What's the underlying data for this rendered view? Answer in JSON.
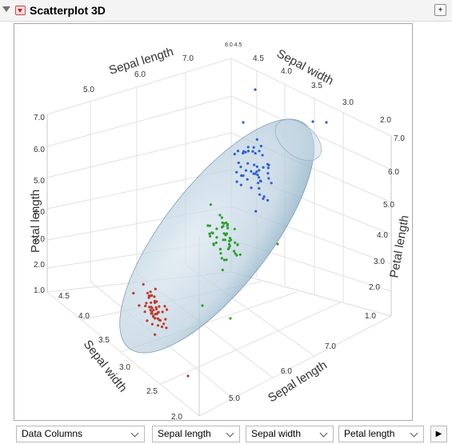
{
  "window": {
    "title": "Scatterplot 3D"
  },
  "controls": {
    "data_columns": "Data Columns",
    "x_column": "Sepal length",
    "y_column": "Sepal width",
    "z_column": "Petal length",
    "next_icon": "play-triangle-icon"
  },
  "axes": {
    "sepal_length_label": "Sepal length",
    "sepal_width_label": "Sepal width",
    "petal_length_label": "Petal length",
    "sepal_length_ticks": [
      "5.0",
      "6.0",
      "7.0"
    ],
    "sepal_width_ticks": [
      "2.0",
      "2.5",
      "3.0",
      "3.5",
      "4.0",
      "4.5"
    ],
    "petal_length_ticks": [
      "1.0",
      "2.0",
      "3.0",
      "4.0",
      "5.0",
      "6.0",
      "7.0"
    ],
    "top_corner_tick": "8.0 4.5"
  },
  "colors": {
    "setosa": "#c0392b",
    "versicolor": "#2ca02c",
    "virginica": "#2f5fd0",
    "ellipsoid": "#a9c3d6"
  },
  "chart_data": {
    "type": "scatter",
    "x_axis": "Sepal length",
    "y_axis": "Sepal width",
    "z_axis": "Petal length",
    "zlim": [
      1.0,
      7.0
    ],
    "series": [
      {
        "color": "#c0392b",
        "count": 50
      },
      {
        "color": "#2ca02c",
        "count": 50
      },
      {
        "color": "#2f5fd0",
        "count": 50
      }
    ],
    "overlay": "normal contour ellipsoid"
  }
}
